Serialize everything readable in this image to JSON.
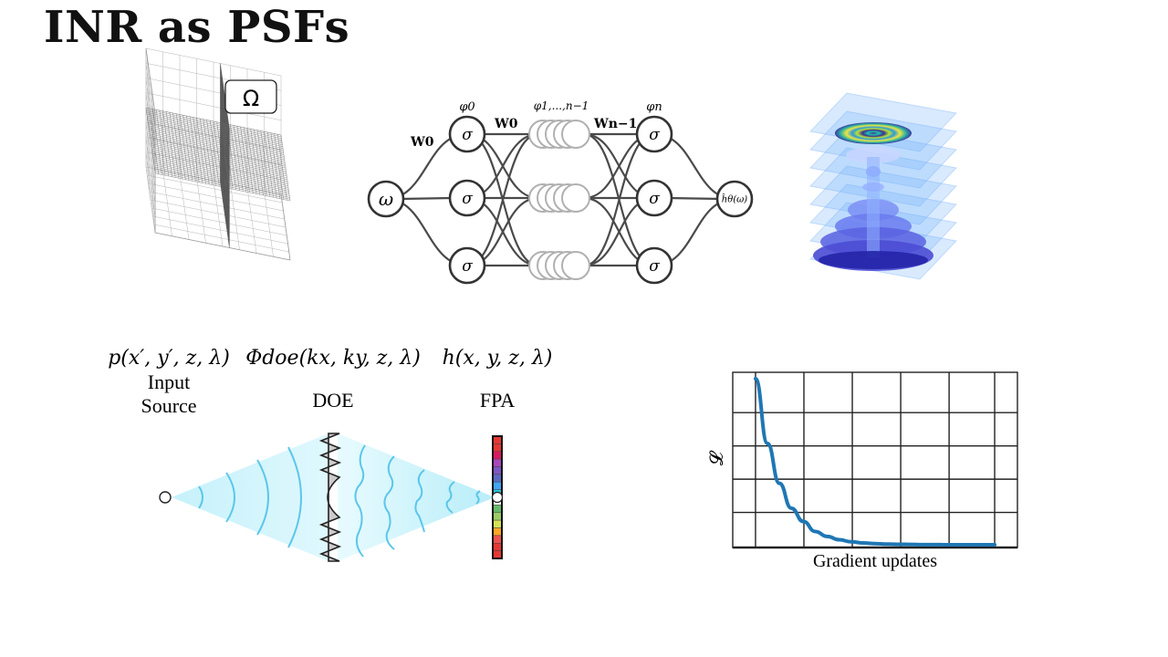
{
  "title": "INR as PSFs",
  "domain_box": {
    "label": "Ω"
  },
  "network": {
    "input_label": "ω",
    "output_label": "ĥθ(ω)",
    "neuron_label": "σ",
    "layer_labels": {
      "first": "φ0",
      "middle": "φ1,...,n−1",
      "last": "φn"
    },
    "weight_labels": {
      "w0_left": "W0",
      "w0_mid": "W0",
      "wn1": "Wn−1"
    }
  },
  "optics": {
    "source": {
      "expr": "p(x′, y′, z, λ)",
      "name_line1": "Input",
      "name_line2": "Source"
    },
    "doe": {
      "expr": "Φdoe(kx, ky, z, λ)",
      "name": "DOE"
    },
    "fpa": {
      "expr": "h(x, y, z, λ)",
      "name": "FPA"
    },
    "detector_colors": [
      "#e53935",
      "#e53935",
      "#d81b60",
      "#ab47bc",
      "#7e57c2",
      "#5c6bc0",
      "#42a5f5",
      "#26c6da",
      "#ffffff",
      "#66bb6a",
      "#9ccc65",
      "#d4e157",
      "#ffa726",
      "#ef5350",
      "#e53935",
      "#e53935"
    ]
  },
  "loss_chart": {
    "chart_data": {
      "type": "line",
      "xlabel": "Gradient updates",
      "ylabel": "𝓛",
      "grid": true,
      "series": [
        {
          "color": "#1f77b4",
          "x": [
            0,
            0.05,
            0.1,
            0.15,
            0.2,
            0.25,
            0.3,
            0.35,
            0.4,
            0.45,
            0.5,
            0.55,
            0.6,
            0.65,
            0.7,
            0.75,
            0.8,
            0.85,
            0.9,
            0.95,
            1.0
          ],
          "y": [
            1.0,
            0.61,
            0.37,
            0.22,
            0.14,
            0.08,
            0.05,
            0.03,
            0.018,
            0.011,
            0.007,
            0.004,
            0.003,
            0.002,
            0.001,
            0.001,
            0.0,
            0.0,
            0.0,
            0.0,
            0.0
          ]
        }
      ],
      "xlim": [
        0,
        1
      ],
      "ylim": [
        0,
        1
      ]
    }
  }
}
